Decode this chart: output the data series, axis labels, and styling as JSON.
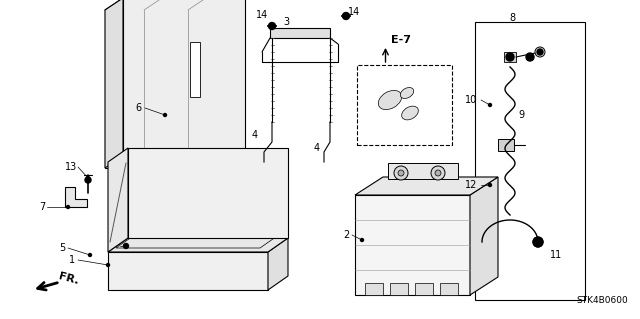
{
  "bg_color": "#ffffff",
  "diagram_code": "STK4B0600",
  "figsize": [
    6.4,
    3.19
  ],
  "dpi": 100
}
